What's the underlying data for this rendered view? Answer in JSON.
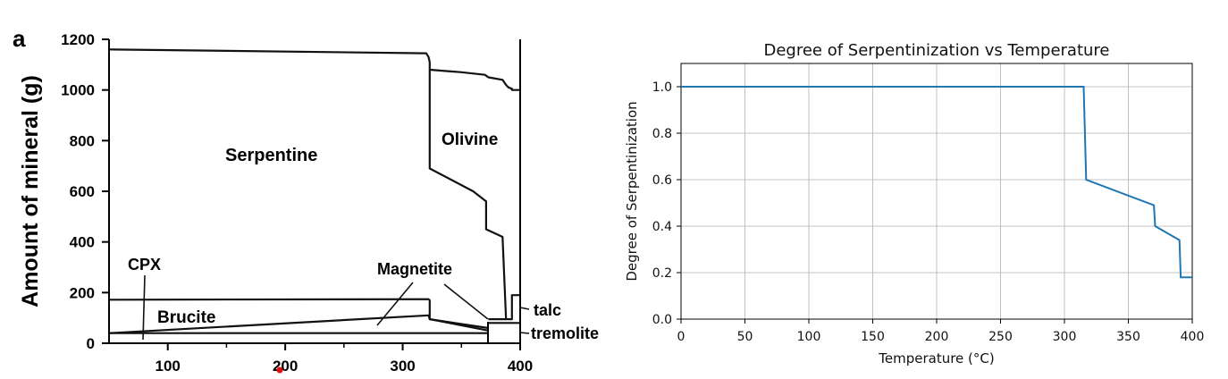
{
  "chart_data": [
    {
      "type": "area",
      "panel_label": "a",
      "ylabel": "Amount of mineral (g)",
      "xlabel": "",
      "xlim": [
        50,
        400
      ],
      "ylim": [
        0,
        1200
      ],
      "xticks": [
        "100",
        "200",
        "300",
        "400"
      ],
      "yticks": [
        "0",
        "200",
        "400",
        "600",
        "800",
        "1000",
        "1200"
      ],
      "grid": false,
      "region_labels": [
        "Serpentine",
        "Olivine",
        "Brucite",
        "CPX",
        "Magnetite",
        "talc",
        "tremolite"
      ],
      "series": [
        {
          "name": "Serpentine",
          "x": [
            50,
            320,
            322,
            323,
            323,
            360,
            371,
            371,
            385,
            388
          ],
          "y": [
            1160,
            1145,
            1130,
            1110,
            690,
            600,
            560,
            450,
            420,
            95
          ]
        },
        {
          "name": "Olivine",
          "x": [
            323,
            350,
            370,
            373,
            385,
            388,
            390,
            393,
            393,
            400
          ],
          "y": [
            1080,
            1070,
            1060,
            1050,
            1040,
            1020,
            1010,
            1005,
            1000,
            1000
          ]
        },
        {
          "name": "Brucite",
          "x": [
            50,
            322,
            323,
            323,
            373
          ],
          "y": [
            172,
            174,
            170,
            95,
            50
          ]
        },
        {
          "name": "Magnetite",
          "x": [
            50,
            322,
            323,
            373
          ],
          "y": [
            40,
            110,
            95,
            60
          ]
        },
        {
          "name": "CPX",
          "x": [
            50,
            373
          ],
          "y": [
            40,
            40
          ]
        },
        {
          "name": "talc",
          "x": [
            373,
            393,
            393,
            400
          ],
          "y": [
            95,
            95,
            190,
            190
          ]
        },
        {
          "name": "tremolite",
          "x": [
            373,
            400
          ],
          "y": [
            80,
            80
          ]
        }
      ]
    },
    {
      "type": "line",
      "title": "Degree of Serpentinization vs Temperature",
      "xlabel": "Temperature (°C)",
      "ylabel": "Degree of Serpentinization",
      "xlim": [
        0,
        400
      ],
      "ylim": [
        0,
        1.1
      ],
      "xticks": [
        "0",
        "50",
        "100",
        "150",
        "200",
        "250",
        "300",
        "350",
        "400"
      ],
      "yticks": [
        "0.0",
        "0.2",
        "0.4",
        "0.6",
        "0.8",
        "1.0"
      ],
      "grid": true,
      "line_color": "#1f77b4",
      "x": [
        0,
        315,
        317,
        370,
        371,
        390,
        391,
        400
      ],
      "y": [
        1.0,
        1.0,
        0.6,
        0.49,
        0.4,
        0.34,
        0.18,
        0.18
      ]
    }
  ]
}
